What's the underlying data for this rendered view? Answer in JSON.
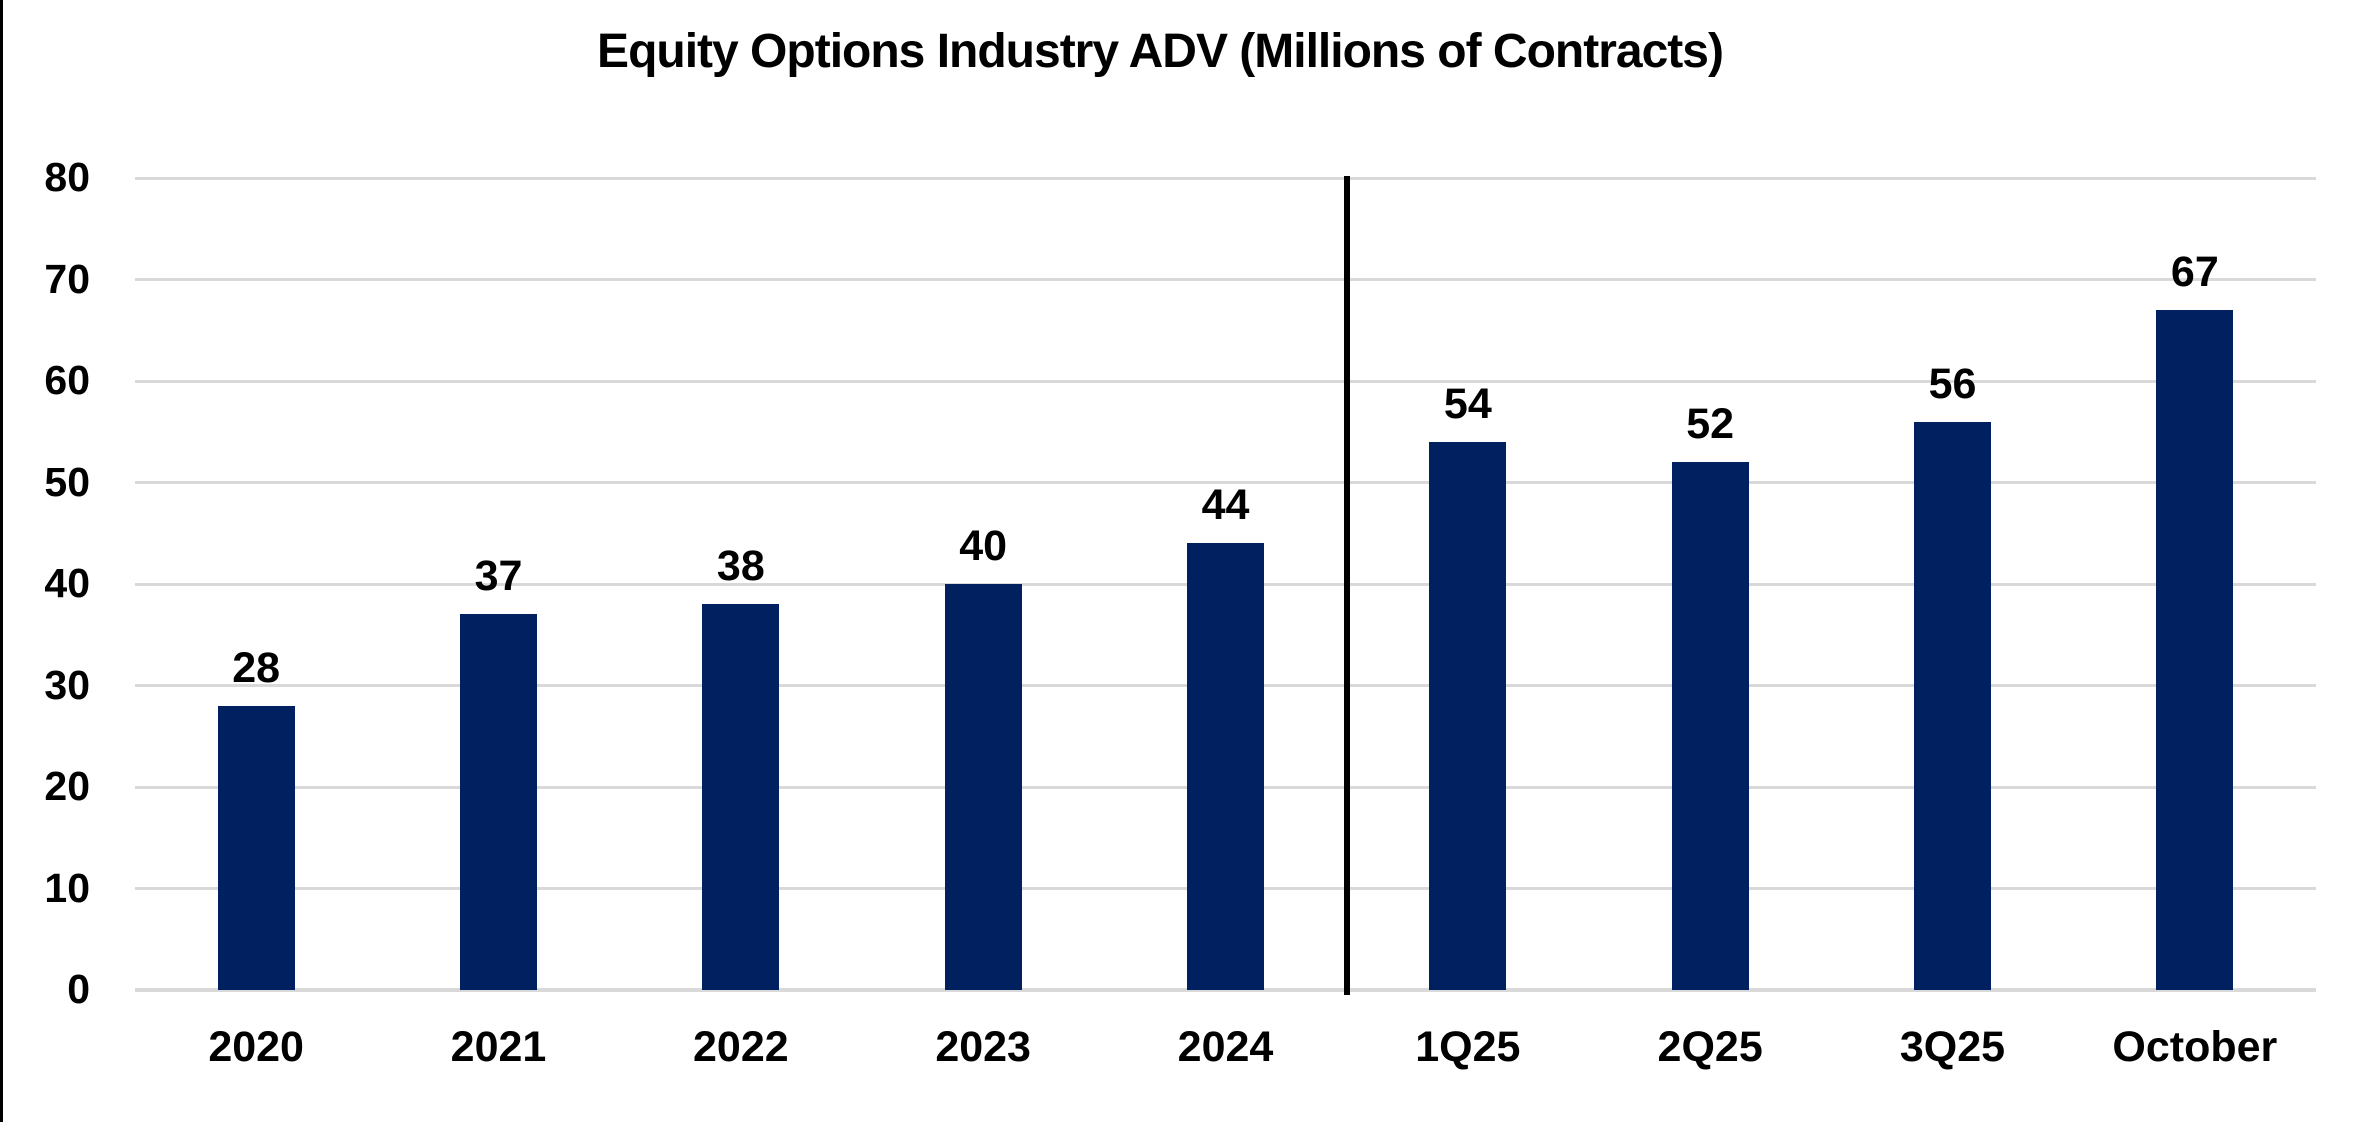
{
  "chart_data": {
    "type": "bar",
    "title": "Equity Options Industry ADV (Millions of Contracts)",
    "categories": [
      "2020",
      "2021",
      "2022",
      "2023",
      "2024",
      "1Q25",
      "2Q25",
      "3Q25",
      "October"
    ],
    "values": [
      28,
      37,
      38,
      40,
      44,
      54,
      52,
      56,
      67
    ],
    "value_labels": [
      "28",
      "37",
      "38",
      "40",
      "44",
      "54",
      "52",
      "56",
      "67"
    ],
    "xlabel": "",
    "ylabel": "",
    "ylim": [
      0,
      80
    ],
    "ytick_interval": 10,
    "ytick_labels": [
      "0",
      "10",
      "20",
      "30",
      "40",
      "50",
      "60",
      "70",
      "80"
    ],
    "grid": true,
    "legend_position": "none",
    "divider_after_category": "2024",
    "divider_after_index": 4,
    "colors": {
      "bar": "#002060",
      "gridline": "#d9d9d9",
      "baseline": "#d9d9d9",
      "divider": "#000000",
      "text": "#000000",
      "background": "#ffffff",
      "frame_border": "#000000"
    }
  }
}
